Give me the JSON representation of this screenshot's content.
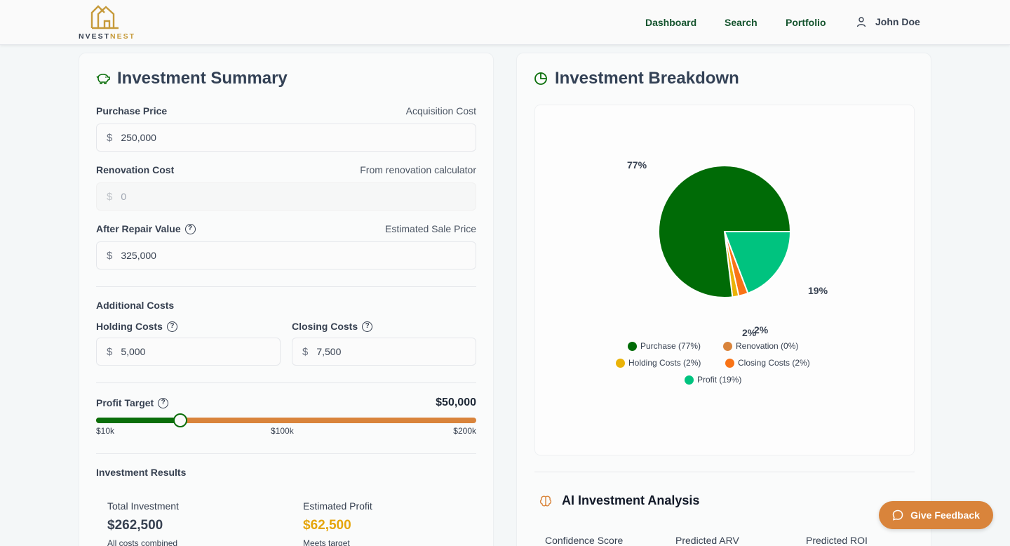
{
  "brand": {
    "name_left": "NVEST",
    "name_right": "NEST",
    "accent": "#c69a3a"
  },
  "nav": {
    "dashboard": "Dashboard",
    "search": "Search",
    "portfolio": "Portfolio",
    "user_name": "John Doe"
  },
  "summary": {
    "title": "Investment Summary",
    "purchase": {
      "label": "Purchase Price",
      "hint": "Acquisition Cost",
      "value": "250,000",
      "currency": "$"
    },
    "renovation": {
      "label": "Renovation Cost",
      "hint": "From renovation calculator",
      "value": "0",
      "currency": "$"
    },
    "arv": {
      "label": "After Repair Value",
      "hint": "Estimated Sale Price",
      "value": "325,000",
      "currency": "$"
    },
    "additional": {
      "title": "Additional Costs",
      "holding": {
        "label": "Holding Costs",
        "value": "5,000",
        "currency": "$"
      },
      "closing": {
        "label": "Closing Costs",
        "value": "7,500",
        "currency": "$"
      }
    },
    "profit_target": {
      "label": "Profit Target",
      "value_text": "$50,000",
      "level": 0.2222,
      "ticks": [
        "$10k",
        "$100k",
        "$200k"
      ]
    },
    "results": {
      "title": "Investment Results",
      "total": {
        "label": "Total Investment",
        "value": "$262,500",
        "sub": "All costs combined"
      },
      "profit": {
        "label": "Estimated Profit",
        "value": "$62,500",
        "sub": "Meets target",
        "color": "#e5a50a"
      }
    }
  },
  "breakdown": {
    "title": "Investment Breakdown",
    "legend": [
      {
        "label": "Purchase (77%)",
        "color": "#006b06"
      },
      {
        "label": "Renovation (0%)",
        "color": "#d9843b"
      },
      {
        "label": "Holding Costs (2%)",
        "color": "#eab308"
      },
      {
        "label": "Closing Costs (2%)",
        "color": "#f97316"
      },
      {
        "label": "Profit (19%)",
        "color": "#00c37f"
      }
    ],
    "pct_labels": [
      "77%",
      "19%",
      "2%",
      "2%"
    ]
  },
  "chart_data": {
    "type": "pie",
    "categories": [
      "Purchase",
      "Renovation",
      "Holding Costs",
      "Closing Costs",
      "Profit"
    ],
    "values": [
      250000,
      0,
      5000,
      7500,
      62500
    ],
    "percent_labels": [
      77,
      0,
      2,
      2,
      19
    ],
    "colors": [
      "#006b06",
      "#d9843b",
      "#eab308",
      "#f97316",
      "#00c37f"
    ],
    "legend_position": "bottom"
  },
  "ai": {
    "title": "AI Investment Analysis",
    "columns": [
      "Confidence Score",
      "Predicted ARV",
      "Predicted ROI"
    ]
  },
  "feedback": {
    "label": "Give Feedback"
  },
  "colors": {
    "primary": "#0a6e0a",
    "accent": "#d9843b",
    "nav": "#14532d"
  }
}
